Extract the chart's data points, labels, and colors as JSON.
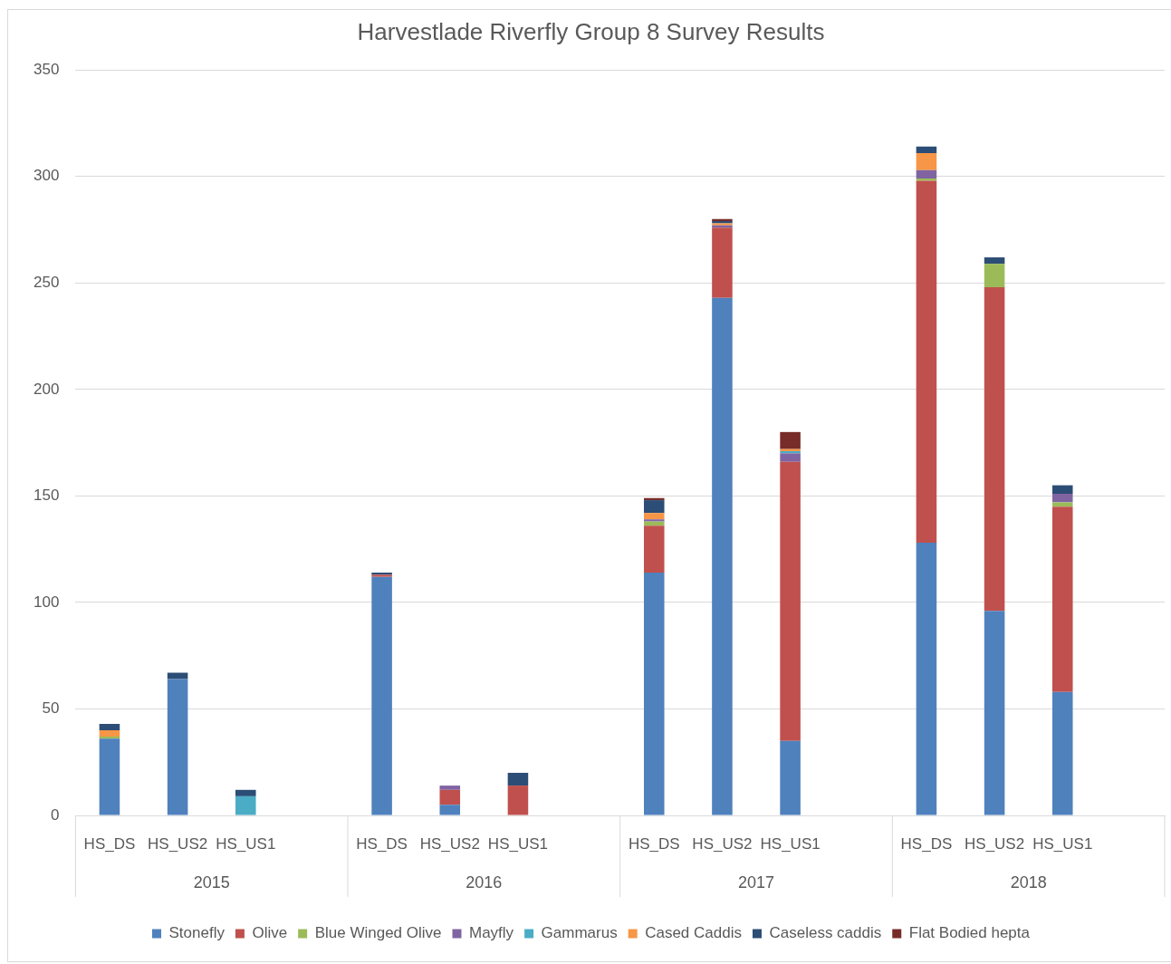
{
  "chart_data": {
    "type": "bar",
    "stacked": true,
    "title": "Harvestlade Riverfly Group 8 Survey Results",
    "categories": [
      "HS_DS",
      "HS_US2",
      "HS_US1",
      null,
      "HS_DS",
      "HS_US2",
      "HS_US1",
      null,
      "HS_DS",
      "HS_US2",
      "HS_US1",
      null,
      "HS_DS",
      "HS_US2",
      "HS_US1",
      null
    ],
    "annotations": [
      "2015",
      "2016",
      "2017",
      "2018"
    ],
    "ylim": [
      0,
      350
    ],
    "yticks": [
      0,
      50,
      100,
      150,
      200,
      250,
      300,
      350
    ],
    "grid": "y",
    "legend": "bottom",
    "series": [
      {
        "name": "Stonefly",
        "color": "#4f81bd",
        "values": [
          36,
          64,
          0,
          null,
          112,
          5,
          0,
          null,
          114,
          243,
          35,
          null,
          128,
          96,
          58,
          null
        ]
      },
      {
        "name": "Olive",
        "color": "#c0504d",
        "values": [
          0,
          0,
          0,
          null,
          1,
          7,
          14,
          null,
          22,
          33,
          131,
          null,
          170,
          152,
          87,
          null
        ]
      },
      {
        "name": "Blue Winged Olive",
        "color": "#9bbb59",
        "values": [
          1,
          0,
          0,
          null,
          0,
          0,
          0,
          null,
          2,
          0,
          0,
          null,
          1,
          11,
          2,
          null
        ]
      },
      {
        "name": "Mayfly",
        "color": "#8064a2",
        "values": [
          0,
          0,
          0,
          null,
          0,
          2,
          0,
          null,
          1,
          1,
          4,
          null,
          4,
          0,
          4,
          null
        ]
      },
      {
        "name": "Gammarus",
        "color": "#4bacc6",
        "values": [
          0,
          0,
          9,
          null,
          0,
          0,
          0,
          null,
          0,
          0,
          1,
          null,
          0,
          0,
          0,
          null
        ]
      },
      {
        "name": "Cased Caddis",
        "color": "#f79646",
        "values": [
          3,
          0,
          0,
          null,
          0,
          0,
          0,
          null,
          3,
          1,
          1,
          null,
          8,
          0,
          0,
          null
        ]
      },
      {
        "name": "Caseless caddis",
        "color": "#2c4d75",
        "values": [
          3,
          3,
          3,
          null,
          1,
          0,
          6,
          null,
          6,
          1,
          0,
          null,
          3,
          3,
          4,
          null
        ]
      },
      {
        "name": "Flat Bodied hepta",
        "color": "#772c2a",
        "values": [
          0,
          0,
          0,
          null,
          0,
          0,
          0,
          null,
          1,
          1,
          8,
          null,
          0,
          0,
          0,
          null
        ]
      }
    ]
  }
}
